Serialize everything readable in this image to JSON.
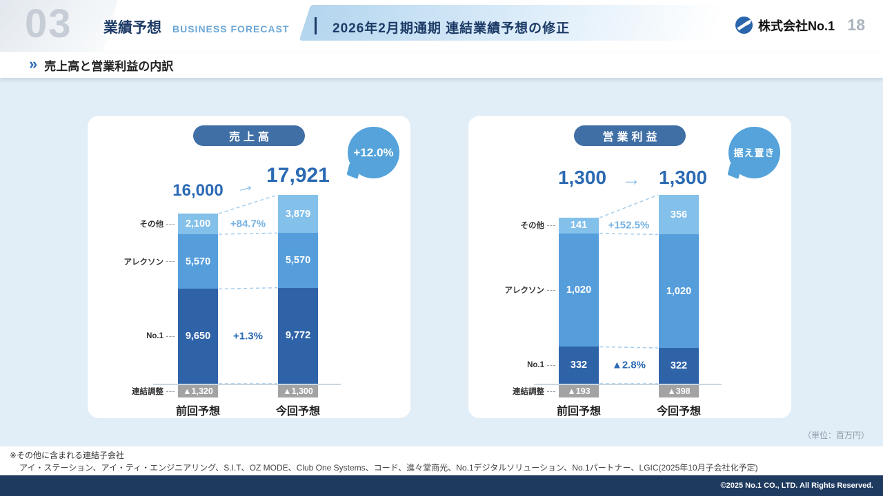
{
  "header": {
    "section_number": "03",
    "title": "業績予想",
    "title_en": "BUSINESS FORECAST",
    "banner": "2026年2月期通期 連結業績予想の修正",
    "company": "株式会社No.1",
    "page_number": "18"
  },
  "section": {
    "chevron": "»",
    "heading": "売上高と営業利益の内訳"
  },
  "glyphs": {
    "arrow": "→"
  },
  "unit_note": "（単位：百万円）",
  "footnotes": {
    "line1": "※その他に含まれる連結子会社",
    "line2": "アイ・ステーション、アイ・ティ・エンジニアリング、S.I.T、OZ MODE、Club One Systems、コード、進々堂商光、No.1デジタルソリューション、No.1パートナー、LGIC(2025年10月子会社化予定)"
  },
  "footer": {
    "copyright": "©2025 No.1 CO., LTD. All Rights Reserved."
  },
  "chart_data": [
    {
      "type": "bar",
      "stacked": true,
      "title": "売上高",
      "badge": "+12.0%",
      "unit": "百万円",
      "totals": {
        "prev": "16,000",
        "current": "17,921"
      },
      "categories": [
        "前回予想",
        "今回予想"
      ],
      "series": [
        {
          "name": "その他",
          "values": [
            2100,
            3879
          ],
          "color": "#83c0ea"
        },
        {
          "name": "アレクソン",
          "values": [
            5570,
            5570
          ],
          "color": "#569ddb"
        },
        {
          "name": "No.1",
          "values": [
            9650,
            9772
          ],
          "color": "#2f63a8"
        }
      ],
      "adjustment": {
        "name": "連結調整",
        "values": [
          -1320,
          -1300
        ],
        "labels": [
          "▲1,320",
          "▲1,300"
        ],
        "color": "#a3a3a3"
      },
      "changes": [
        {
          "series": "その他",
          "label": "+84.7%",
          "tone": "light"
        },
        {
          "series": "No.1",
          "label": "+1.3%",
          "tone": "dark"
        }
      ]
    },
    {
      "type": "bar",
      "stacked": true,
      "title": "営業利益",
      "badge": "据え置き",
      "unit": "百万円",
      "totals": {
        "prev": "1,300",
        "current": "1,300"
      },
      "categories": [
        "前回予想",
        "今回予想"
      ],
      "series": [
        {
          "name": "その他",
          "values": [
            141,
            356
          ],
          "color": "#83c0ea"
        },
        {
          "name": "アレクソン",
          "values": [
            1020,
            1020
          ],
          "color": "#569ddb"
        },
        {
          "name": "No.1",
          "values": [
            332,
            322
          ],
          "color": "#2f63a8"
        }
      ],
      "adjustment": {
        "name": "連結調整",
        "values": [
          -193,
          -398
        ],
        "labels": [
          "▲193",
          "▲398"
        ],
        "color": "#a3a3a3"
      },
      "changes": [
        {
          "series": "その他",
          "label": "+152.5%",
          "tone": "light"
        },
        {
          "series": "No.1",
          "label": "▲2.8%",
          "tone": "dark"
        }
      ]
    }
  ]
}
